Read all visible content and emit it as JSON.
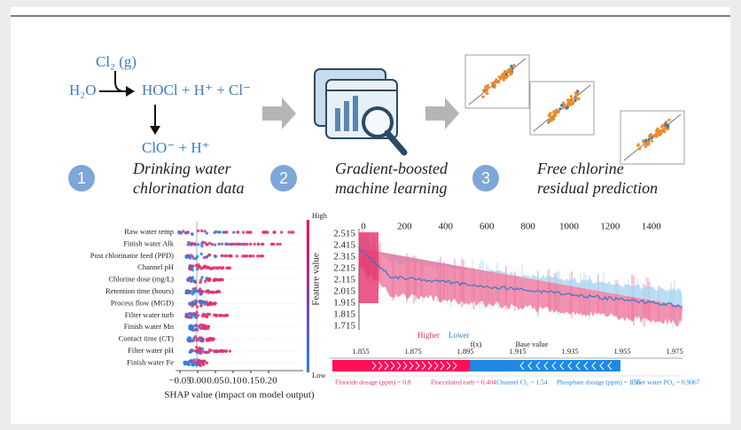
{
  "reaction": {
    "gas": "Cl₂ (g)",
    "reactant": "H₂O",
    "products": "HOCl + H⁺ + Cl⁻",
    "dissociation": "ClO⁻ + H⁺"
  },
  "steps": [
    {
      "number": "1",
      "lines": [
        "Drinking water",
        "chlorination data"
      ]
    },
    {
      "number": "2",
      "lines": [
        "Gradient-boosted",
        "machine learning"
      ]
    },
    {
      "number": "3",
      "lines": [
        "Free chlorine",
        "residual prediction"
      ]
    }
  ],
  "shap_summary": {
    "features": [
      "Raw water temp",
      "Finish water Alk",
      "Post chlorinator feed (PPD)",
      "Channel pH",
      "Chlorine dose (mg/L)",
      "Retention time (hours)",
      "Process flow (MGD)",
      "Filter water turb",
      "Finish water Mn",
      "Contact time (CT)",
      "Filter water pH",
      "Finish water Fe"
    ],
    "xticks": [
      "−0.05",
      "0.00",
      "0.05",
      "0.10",
      "0.15",
      "0.20"
    ],
    "xlabel": "SHAP value (impact on model output)",
    "color_high": "High",
    "color_low": "Low"
  },
  "feature_plot": {
    "ylabel": "Feature value",
    "xticks": [
      "0",
      "200",
      "400",
      "600",
      "800",
      "1000",
      "1200",
      "1400"
    ],
    "yticks": [
      "2.515",
      "2.415",
      "2.315",
      "2.215",
      "2.115",
      "2.015",
      "1.915",
      "1.815",
      "1.715"
    ]
  },
  "force_plot": {
    "higher": "Higher",
    "lower": "Lower",
    "fx": "f(x)",
    "base": "Base value",
    "ticks": [
      "1.855",
      "1.875",
      "1.895",
      "1.915",
      "1.935",
      "1.955",
      "1.975"
    ],
    "features": [
      "Fluoride dosage (ppm) = 0.8",
      "Flocculated turb = 0.404",
      "Channel Cl₂ = 1.54",
      "Phosphate dosage (ppm) = 1.55",
      "Filter water PO₄ = 0.9067"
    ]
  }
}
